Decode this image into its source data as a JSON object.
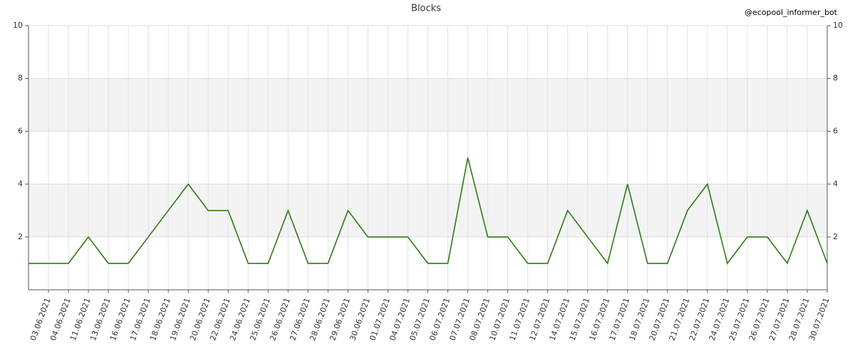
{
  "chart_data": {
    "type": "line",
    "title": "Blocks",
    "watermark": "@ecopool_informer_bot",
    "categories": [
      null,
      "03.06.2021",
      "04.06.2021",
      "11.06.2021",
      "13.06.2021",
      "16.06.2021",
      "17.06.2021",
      "18.06.2021",
      "19.06.2021",
      "20.06.2021",
      "22.06.2021",
      "24.06.2021",
      "25.06.2021",
      "26.06.2021",
      "27.06.2021",
      "28.06.2021",
      "29.06.2021",
      "30.06.2021",
      "01.07.2021",
      "04.07.2021",
      "05.07.2021",
      "06.07.2021",
      "07.07.2021",
      "08.07.2021",
      "10.07.2021",
      "11.07.2021",
      "12.07.2021",
      "14.07.2021",
      "15.07.2021",
      "16.07.2021",
      "17.07.2021",
      "18.07.2021",
      "20.07.2021",
      "21.07.2021",
      "22.07.2021",
      "24.07.2021",
      "25.07.2021",
      "26.07.2021",
      "27.07.2021",
      "28.07.2021",
      "30.07.2021"
    ],
    "series": [
      {
        "name": "Blocks",
        "color": "#2f7a13",
        "values": [
          1,
          1,
          1,
          2,
          1,
          1,
          2,
          3,
          4,
          3,
          3,
          1,
          1,
          3,
          1,
          1,
          3,
          2,
          2,
          2,
          1,
          1,
          5,
          2,
          2,
          1,
          1,
          3,
          2,
          1,
          4,
          1,
          1,
          3,
          4,
          1,
          2,
          2,
          1,
          3,
          1
        ]
      }
    ],
    "ylim": [
      0,
      10
    ],
    "yticks": [
      2,
      4,
      6,
      8,
      10
    ],
    "y2lim": [
      0,
      10
    ],
    "y2ticks": [
      2,
      4,
      6,
      8,
      10
    ],
    "grid": true
  }
}
